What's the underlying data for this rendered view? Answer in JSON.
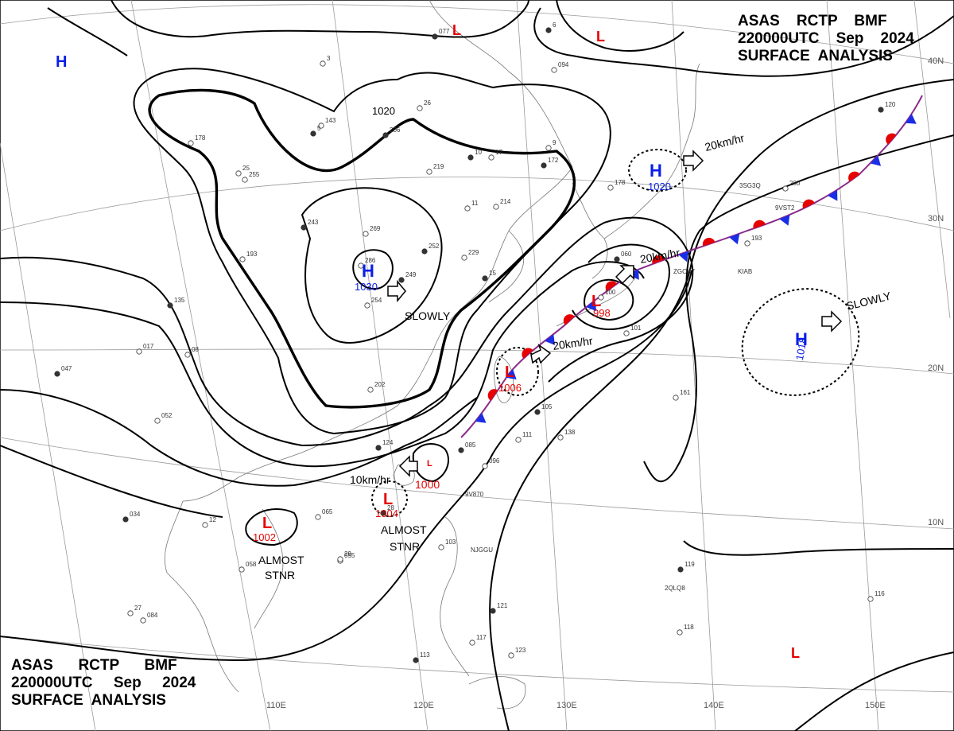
{
  "header": {
    "top_right": [
      "ASAS    RCTP    BMF",
      "220000UTC    Sep    2024",
      "SURFACE  ANALYSIS"
    ],
    "bottom_left": [
      "ASAS      RCTP      BMF",
      "220000UTC     Sep     2024",
      "SURFACE  ANALYSIS"
    ]
  },
  "colors": {
    "high": "#0a1ee6",
    "low": "#e60000",
    "warm_front": "#e60000",
    "cold_front": "#1a2ee6",
    "isobar": "#000000",
    "grid": "#9a9a9a"
  },
  "grid_labels": {
    "longitude": [
      "110E",
      "120E",
      "130E",
      "140E",
      "150E"
    ],
    "latitude": [
      "40N",
      "30N",
      "20N",
      "10N"
    ]
  },
  "pressure_centers": [
    {
      "type": "H",
      "value": "1030",
      "movement": "SLOWLY"
    },
    {
      "type": "H",
      "value": "1020",
      "movement": "20km/hr"
    },
    {
      "type": "H",
      "value": "1018",
      "movement": "SLOWLY"
    },
    {
      "type": "H",
      "value": ""
    },
    {
      "type": "L",
      "value": "998",
      "movement": "20km/hr"
    },
    {
      "type": "L",
      "value": "1006",
      "movement": "20km/hr"
    },
    {
      "type": "L",
      "value": "1000"
    },
    {
      "type": "L",
      "value": "1004",
      "movement": "10km/hr",
      "note": "ALMOST STNR"
    },
    {
      "type": "L",
      "value": "1002",
      "note": "ALMOST STNR"
    },
    {
      "type": "L",
      "value": ""
    },
    {
      "type": "L",
      "value": ""
    },
    {
      "type": "L",
      "value": ""
    }
  ],
  "isobar_labels": [
    "1020"
  ],
  "station_values": [
    "077",
    "178",
    "143",
    "206",
    "219",
    "255",
    "243",
    "269",
    "286",
    "249",
    "254",
    "193",
    "135",
    "017",
    "08",
    "047",
    "052",
    "202",
    "124",
    "065",
    "055",
    "034",
    "058",
    "084",
    "113",
    "117",
    "123",
    "252",
    "229",
    "214",
    "172",
    "178",
    "094",
    "060",
    "101",
    "161",
    "105",
    "111",
    "138",
    "085",
    "096",
    "103",
    "121",
    "118",
    "116",
    "119",
    "200",
    "193",
    "120",
    "100",
    "26",
    "10",
    "11",
    "17",
    "15",
    "12",
    "29",
    "28",
    "27",
    "25",
    "6",
    "3",
    "9",
    "5"
  ],
  "station_ids": [
    "3SG3Q",
    "9VST2",
    "ZGOK7",
    "KIAB",
    "9V870",
    "NJGGU",
    "2QLQ8"
  ]
}
